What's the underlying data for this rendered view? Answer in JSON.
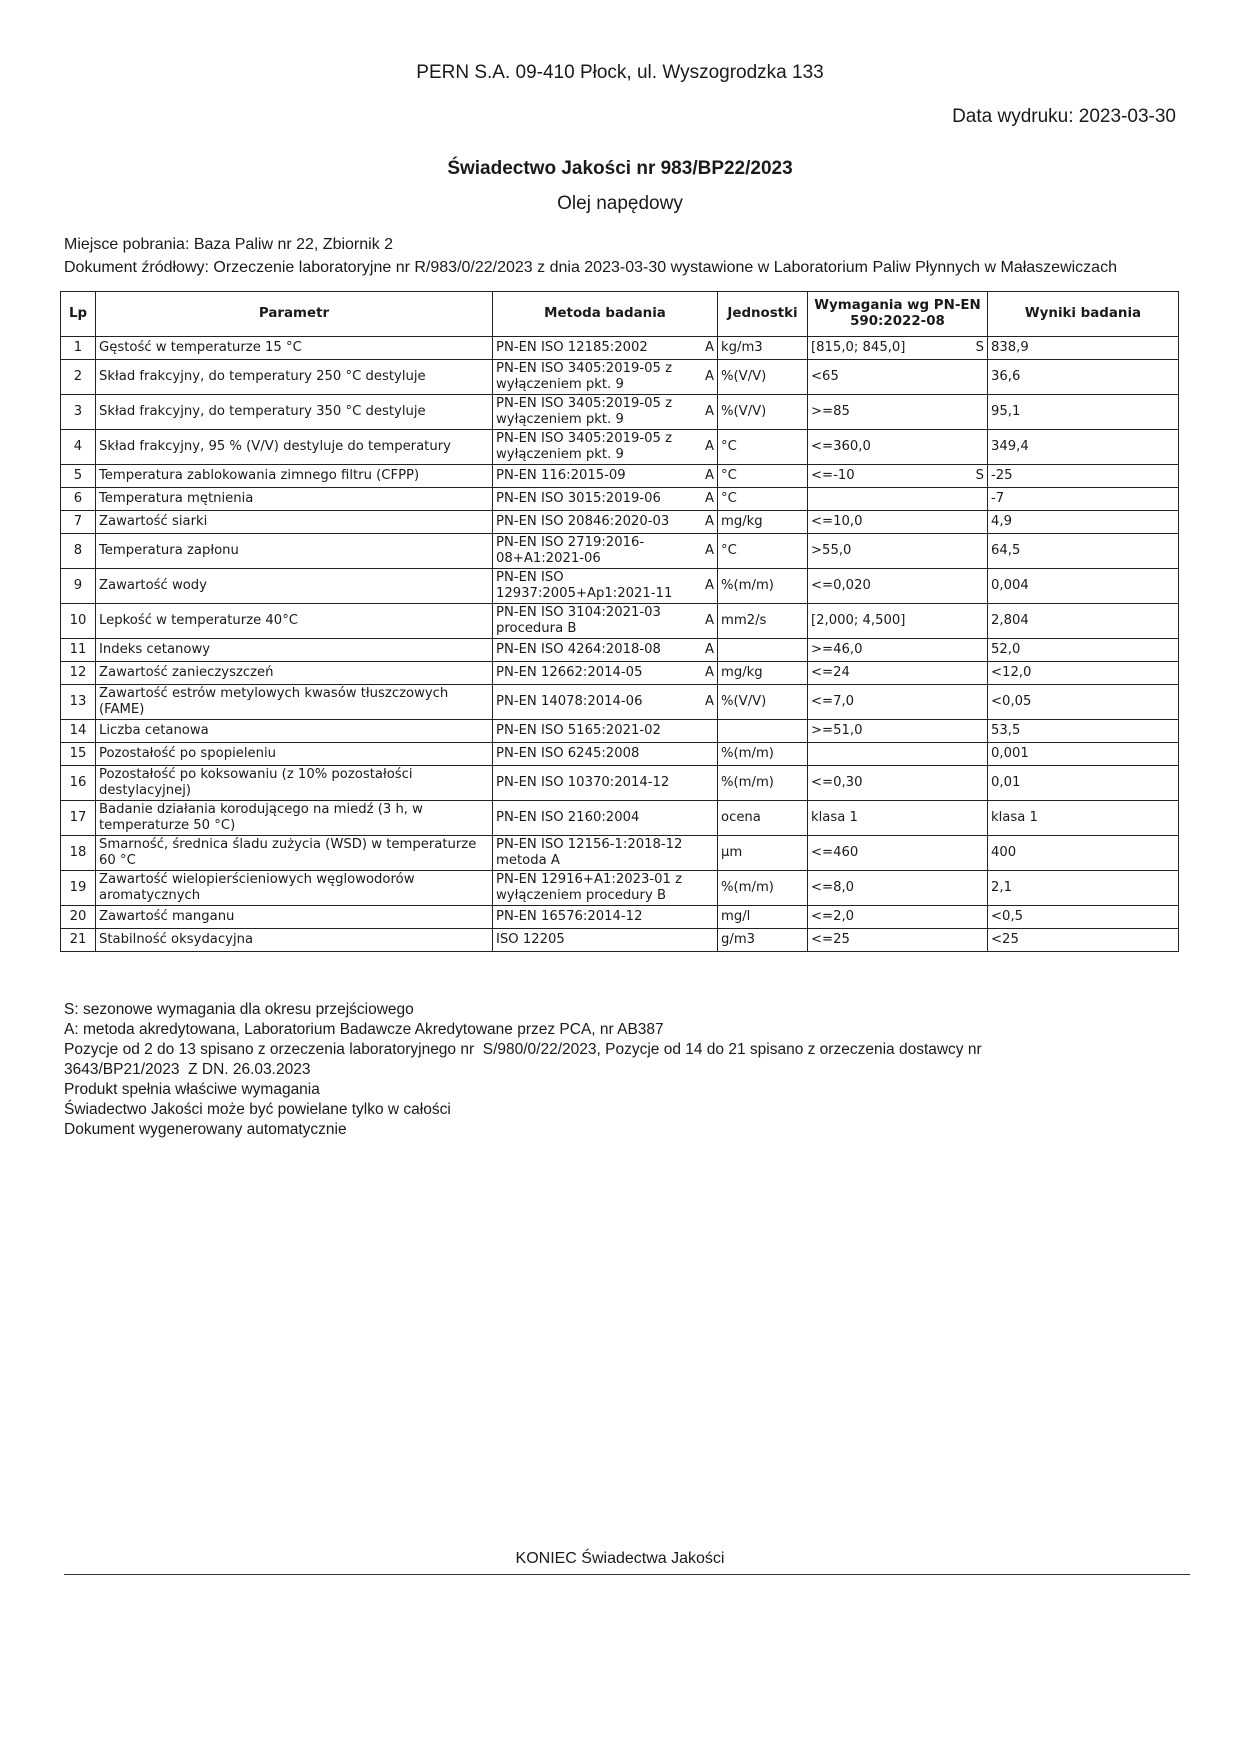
{
  "header": {
    "company": "PERN S.A. 09-410 Płock, ul. Wyszogrodzka 133",
    "print_date": "Data wydruku: 2023-03-30",
    "title": "Świadectwo Jakości nr 983/BP22/2023",
    "subtitle": "Olej napędowy",
    "place": "Miejsce pobrania: Baza Paliw nr 22, Zbiornik 2",
    "source": "Dokument źródłowy: Orzeczenie laboratoryjne nr R/983/0/22/2023 z dnia 2023-03-30 wystawione w Laboratorium Paliw Płynnych w Małaszewiczach"
  },
  "table": {
    "columns": [
      "Lp",
      "Parametr",
      "Metoda badania",
      "Jednostki",
      "Wymagania wg PN-EN 590:2022-08",
      "Wyniki badania"
    ],
    "rows": [
      {
        "lp": "1",
        "parametr": "Gęstość w temperaturze 15 °C",
        "metoda": "PN-EN ISO 12185:2002",
        "a": "A",
        "jednostki": "kg/m3",
        "wymagania": "[815,0; 845,0]",
        "s": "S",
        "wynik": "838,9"
      },
      {
        "lp": "2",
        "parametr": "Skład frakcyjny, do temperatury 250 °C destyluje",
        "metoda": "PN-EN ISO 3405:2019-05 z wyłączeniem pkt. 9",
        "a": "A",
        "jednostki": "%(V/V)",
        "wymagania": "<65",
        "s": "",
        "wynik": "36,6"
      },
      {
        "lp": "3",
        "parametr": "Skład frakcyjny, do temperatury 350 °C destyluje",
        "metoda": "PN-EN ISO 3405:2019-05 z wyłączeniem pkt. 9",
        "a": "A",
        "jednostki": "%(V/V)",
        "wymagania": ">=85",
        "s": "",
        "wynik": "95,1"
      },
      {
        "lp": "4",
        "parametr": "Skład frakcyjny, 95 % (V/V) destyluje do temperatury",
        "metoda": "PN-EN ISO 3405:2019-05 z wyłączeniem pkt. 9",
        "a": "A",
        "jednostki": "°C",
        "wymagania": "<=360,0",
        "s": "",
        "wynik": "349,4"
      },
      {
        "lp": "5",
        "parametr": "Temperatura zablokowania zimnego filtru (CFPP)",
        "metoda": "PN-EN 116:2015-09",
        "a": "A",
        "jednostki": "°C",
        "wymagania": "<=-10",
        "s": "S",
        "wynik": "-25"
      },
      {
        "lp": "6",
        "parametr": "Temperatura mętnienia",
        "metoda": "PN-EN ISO 3015:2019-06",
        "a": "A",
        "jednostki": "°C",
        "wymagania": "",
        "s": "",
        "wynik": "-7"
      },
      {
        "lp": "7",
        "parametr": "Zawartość siarki",
        "metoda": "PN-EN ISO 20846:2020-03",
        "a": "A",
        "jednostki": "mg/kg",
        "wymagania": "<=10,0",
        "s": "",
        "wynik": "4,9"
      },
      {
        "lp": "8",
        "parametr": "Temperatura zapłonu",
        "metoda": "PN-EN ISO 2719:2016-08+A1:2021-06",
        "a": "A",
        "jednostki": "°C",
        "wymagania": ">55,0",
        "s": "",
        "wynik": "64,5"
      },
      {
        "lp": "9",
        "parametr": "Zawartość wody",
        "metoda": "PN-EN ISO 12937:2005+Ap1:2021-11",
        "a": "A",
        "jednostki": "%(m/m)",
        "wymagania": "<=0,020",
        "s": "",
        "wynik": "0,004"
      },
      {
        "lp": "10",
        "parametr": "Lepkość w temperaturze 40°C",
        "metoda": "PN-EN ISO 3104:2021-03 procedura B",
        "a": "A",
        "jednostki": "mm2/s",
        "wymagania": "[2,000; 4,500]",
        "s": "",
        "wynik": "2,804"
      },
      {
        "lp": "11",
        "parametr": "Indeks cetanowy",
        "metoda": "PN-EN ISO 4264:2018-08",
        "a": "A",
        "jednostki": "",
        "wymagania": ">=46,0",
        "s": "",
        "wynik": "52,0"
      },
      {
        "lp": "12",
        "parametr": "Zawartość zanieczyszczeń",
        "metoda": "PN-EN 12662:2014-05",
        "a": "A",
        "jednostki": "mg/kg",
        "wymagania": "<=24",
        "s": "",
        "wynik": "<12,0"
      },
      {
        "lp": "13",
        "parametr": "Zawartość estrów metylowych kwasów tłuszczowych (FAME)",
        "metoda": "PN-EN 14078:2014-06",
        "a": "A",
        "jednostki": "%(V/V)",
        "wymagania": "<=7,0",
        "s": "",
        "wynik": "<0,05"
      },
      {
        "lp": "14",
        "parametr": "Liczba cetanowa",
        "metoda": "PN-EN ISO 5165:2021-02",
        "a": "",
        "jednostki": "",
        "wymagania": ">=51,0",
        "s": "",
        "wynik": "53,5"
      },
      {
        "lp": "15",
        "parametr": "Pozostałość po spopieleniu",
        "metoda": "PN-EN ISO 6245:2008",
        "a": "",
        "jednostki": "%(m/m)",
        "wymagania": "",
        "s": "",
        "wynik": "0,001"
      },
      {
        "lp": "16",
        "parametr": "Pozostałość po koksowaniu (z 10% pozostałości destylacyjnej)",
        "metoda": "PN-EN ISO 10370:2014-12",
        "a": "",
        "jednostki": "%(m/m)",
        "wymagania": "<=0,30",
        "s": "",
        "wynik": "0,01"
      },
      {
        "lp": "17",
        "parametr": "Badanie działania korodującego na miedź (3 h, w temperaturze 50 °C)",
        "metoda": "PN-EN ISO 2160:2004",
        "a": "",
        "jednostki": "ocena",
        "wymagania": "klasa 1",
        "s": "",
        "wynik": "klasa 1"
      },
      {
        "lp": "18",
        "parametr": "Smarność, średnica śladu zużycia (WSD) w temperaturze 60 °C",
        "metoda": "PN-EN ISO 12156-1:2018-12 metoda A",
        "a": "",
        "jednostki": "µm",
        "wymagania": "<=460",
        "s": "",
        "wynik": "400"
      },
      {
        "lp": "19",
        "parametr": "Zawartość wielopierścieniowych węglowodorów aromatycznych",
        "metoda": "PN-EN 12916+A1:2023-01 z wyłączeniem procedury B",
        "a": "",
        "jednostki": "%(m/m)",
        "wymagania": "<=8,0",
        "s": "",
        "wynik": "2,1"
      },
      {
        "lp": "20",
        "parametr": "Zawartość manganu",
        "metoda": "PN-EN 16576:2014-12",
        "a": "",
        "jednostki": "mg/l",
        "wymagania": "<=2,0",
        "s": "",
        "wynik": "<0,5"
      },
      {
        "lp": "21",
        "parametr": "Stabilność oksydacyjna",
        "metoda": "ISO 12205",
        "a": "",
        "jednostki": "g/m3",
        "wymagania": "<=25",
        "s": "",
        "wynik": "<25"
      }
    ]
  },
  "notes": [
    "S: sezonowe wymagania dla okresu przejściowego",
    "A: metoda akredytowana, Laboratorium Badawcze Akredytowane przez PCA, nr AB387",
    "Pozycje od 2 do 13 spisano z orzeczenia laboratoryjnego nr  S/980/0/22/2023, Pozycje od 14 do 21 spisano z orzeczenia dostawcy nr",
    "3643/BP21/2023  Z DN. 26.03.2023",
    "Produkt spełnia właściwe wymagania",
    "Świadectwo Jakości może być powielane tylko w całości",
    "Dokument wygenerowany automatycznie"
  ],
  "footer": {
    "end": "KONIEC Świadectwa Jakości"
  }
}
